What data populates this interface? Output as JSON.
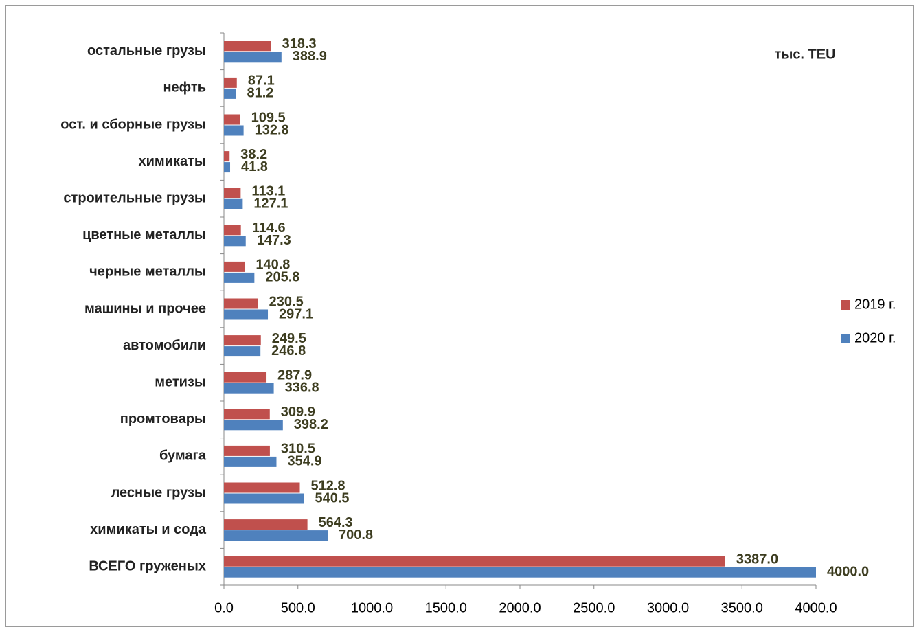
{
  "chart_data": {
    "type": "barh",
    "annotation": "тыс. TEU",
    "categories": [
      "остальные грузы",
      "нефть",
      "ост. и сборные грузы",
      "химикаты",
      "строительные грузы",
      "цветные металлы",
      "черные металлы",
      "машины и прочее",
      "автомобили",
      "метизы",
      "промтовары",
      "бумага",
      "лесные грузы",
      "химикаты и сода",
      "ВСЕГО груженых"
    ],
    "series": [
      {
        "name": "2019 г.",
        "color": "#c0504d",
        "values": [
          318.3,
          87.1,
          109.5,
          38.2,
          113.1,
          114.6,
          140.8,
          230.5,
          249.5,
          287.9,
          309.9,
          310.5,
          512.8,
          564.3,
          3387
        ],
        "value_labels": [
          "318.3",
          "87.1",
          "109.5",
          "38.2",
          "113.1",
          "114.6",
          "140.8",
          "230.5",
          "249.5",
          "287.9",
          "309.9",
          "310.5",
          "512.8",
          "564.3",
          "3387.0"
        ]
      },
      {
        "name": "2020 г.",
        "color": "#4f81bd",
        "values": [
          388.9,
          81.2,
          132.8,
          41.8,
          127.1,
          147.3,
          205.8,
          297.1,
          246.8,
          336.8,
          398.2,
          354.9,
          540.5,
          700.8,
          4000
        ],
        "value_labels": [
          "388.9",
          "81.2",
          "132.8",
          "41.8",
          "127.1",
          "147.3",
          "205.8",
          "297.1",
          "246.8",
          "336.8",
          "398.2",
          "354.9",
          "540.5",
          "700.8",
          "4000.0"
        ]
      }
    ],
    "xlim": [
      0,
      4000
    ],
    "xticks": [
      {
        "value": 0,
        "label": "0.0"
      },
      {
        "value": 500,
        "label": "500.0"
      },
      {
        "value": 1000,
        "label": "1000.0"
      },
      {
        "value": 1500,
        "label": "1500.0"
      },
      {
        "value": 2000,
        "label": "2000.0"
      },
      {
        "value": 2500,
        "label": "2500.0"
      },
      {
        "value": 3000,
        "label": "3000.0"
      },
      {
        "value": 3500,
        "label": "3500.0"
      },
      {
        "value": 4000,
        "label": "4000.0"
      }
    ],
    "legend": "right"
  }
}
